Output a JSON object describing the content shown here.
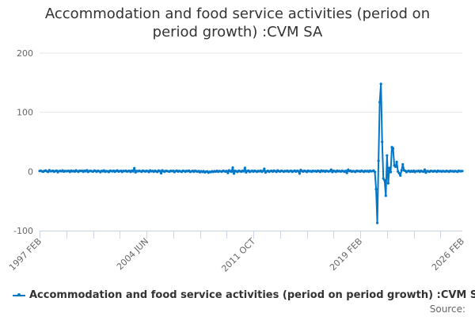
{
  "chart_data": {
    "type": "line",
    "title": "Accommodation and food service activities (period on period growth) :CVM SA",
    "title_lines": [
      "Accommodation and food service activities (period on",
      "period growth) :CVM SA"
    ],
    "xlabel": "",
    "ylabel": "",
    "ylim": [
      -100,
      200
    ],
    "yticks": [
      200,
      100,
      0,
      -100
    ],
    "x_start": "1997 FEB",
    "x_end": "2026 FEB",
    "x_frequency": "monthly",
    "xtick_labels": [
      "1997 FEB",
      "2004 JUN",
      "2011 OCT",
      "2019 FEB",
      "2026 FEB"
    ],
    "xtick_label_indices": [
      0,
      88,
      176,
      264,
      348
    ],
    "minor_tick_interval_months": 22,
    "grid": "horizontal",
    "legend_position": "bottom",
    "color": "#0077c8",
    "series": [
      {
        "name": "Accommodation and food service activities (period on period growth) :CVM SA",
        "values": [
          0.8,
          1.2,
          0.3,
          -0.5,
          0.9,
          1.5,
          0.2,
          -0.8,
          2.1,
          0.4,
          0.6,
          1.1,
          -0.4,
          0.7,
          1.3,
          -1.2,
          0.5,
          0.9,
          0.2,
          1.6,
          -0.3,
          0.8,
          0.4,
          0.6,
          1.0,
          -0.7,
          1.4,
          0.3,
          0.8,
          -0.2,
          1.9,
          0.5,
          -0.6,
          1.2,
          0.7,
          0.9,
          -0.5,
          1.3,
          0.4,
          2.0,
          -0.8,
          0.6,
          1.1,
          0.2,
          -0.3,
          1.5,
          0.8,
          -0.4,
          1.2,
          0.5,
          -1.1,
          0.9,
          0.3,
          1.6,
          -0.6,
          0.7,
          0.2,
          -0.9,
          1.4,
          0.6,
          0.3,
          1.1,
          -0.5,
          0.8,
          1.7,
          -0.2,
          0.4,
          1.0,
          -0.7,
          0.9,
          0.5,
          1.2,
          -0.3,
          0.6,
          0.9,
          -0.8,
          1.4,
          0.2,
          5.5,
          -1.5,
          0.8,
          0.3,
          1.1,
          0.4,
          -0.6,
          1.3,
          0.7,
          -0.2,
          1.0,
          0.5,
          -0.9,
          1.6,
          0.3,
          0.8,
          -0.4,
          1.1,
          0.2,
          -0.7,
          1.5,
          0.6,
          -3.0,
          1.8,
          0.4,
          -0.5,
          1.0,
          0.7,
          0.1,
          -0.3,
          1.2,
          0.5,
          0.9,
          -1.0,
          0.6,
          1.4,
          -0.2,
          0.8,
          0.3,
          -0.6,
          1.1,
          0.7,
          -0.4,
          1.0,
          0.5,
          1.3,
          -0.8,
          0.2,
          0.9,
          -0.5,
          1.2,
          0.4,
          -0.3,
          0.6,
          -1.2,
          0.3,
          -0.8,
          0.5,
          -1.5,
          -0.4,
          0.2,
          -2.0,
          -0.6,
          -1.0,
          0.3,
          -0.8,
          0.4,
          -0.3,
          1.0,
          -0.5,
          0.7,
          0.2,
          -0.4,
          1.1,
          0.6,
          -0.2,
          0.8,
          -2.5,
          1.8,
          0.4,
          -0.6,
          6.5,
          -3.5,
          0.9,
          0.3,
          -0.7,
          1.2,
          0.5,
          -0.4,
          1.0,
          0.2,
          6.0,
          -1.5,
          0.6,
          1.3,
          -0.8,
          0.4,
          0.9,
          -0.3,
          1.1,
          0.5,
          -0.6,
          0.8,
          0.3,
          1.4,
          -0.5,
          0.7,
          4.5,
          -1.8,
          0.2,
          1.0,
          -0.4,
          0.6,
          0.9,
          -0.2,
          1.3,
          0.5,
          -0.7,
          1.6,
          0.4,
          -0.3,
          1.1,
          0.6,
          -0.5,
          0.8,
          0.3,
          1.2,
          -0.4,
          0.7,
          1.0,
          -0.6,
          0.5,
          1.4,
          -0.2,
          0.9,
          0.4,
          -3.5,
          2.5,
          0.6,
          -0.3,
          1.1,
          0.5,
          -0.8,
          1.3,
          0.2,
          0.7,
          -0.5,
          1.0,
          0.4,
          0.8,
          -0.3,
          1.2,
          0.6,
          -0.7,
          1.5,
          0.3,
          0.9,
          -0.4,
          1.1,
          0.5,
          -0.2,
          0.7,
          3.0,
          -1.0,
          0.9,
          0.4,
          -0.6,
          1.3,
          0.2,
          0.8,
          -0.3,
          1.0,
          0.5,
          -0.5,
          0.9,
          -2.5,
          2.8,
          0.6,
          1.2,
          -0.4,
          0.7,
          0.3,
          -0.8,
          1.1,
          0.4,
          0.6,
          -0.2,
          1.3,
          0.5,
          -0.6,
          1.0,
          0.3,
          0.8,
          -0.4,
          1.2,
          0.2,
          0.7,
          1.5,
          -0.8,
          -30,
          -87,
          18,
          117,
          148,
          50,
          -12,
          -15,
          -41,
          27,
          -20,
          6,
          -1,
          41,
          39,
          10,
          8,
          16,
          0,
          -3,
          -7,
          2,
          12,
          2,
          1,
          -1,
          0.5,
          1,
          -0.5,
          0.8,
          -0.3,
          1.2,
          -1,
          0.6,
          0.4,
          1,
          -0.6,
          0.9,
          0.2,
          -0.4,
          3,
          -2,
          0.7,
          0.3,
          -0.5,
          1,
          0.6,
          -0.3,
          0.9,
          0.4,
          -0.6,
          1.1,
          0.2,
          0.7,
          -0.4,
          0.8,
          0.3,
          -0.2,
          0.9,
          0.4,
          -0.5,
          1.0,
          0.3,
          0.6,
          -0.3,
          0.8,
          0.2,
          -0.6,
          1.1,
          0.5,
          0.4,
          0.7
        ]
      }
    ]
  },
  "legend": {
    "label": "Accommodation and food service activities (period on period growth) :CVM SA"
  },
  "source": {
    "label": "Source:"
  }
}
